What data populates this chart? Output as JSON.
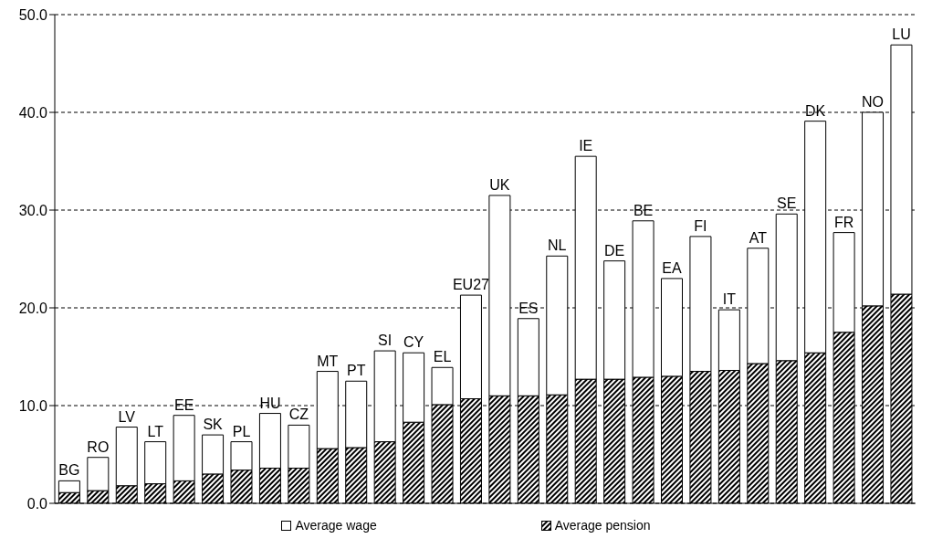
{
  "chart_data": {
    "type": "bar",
    "stacked": true,
    "categories": [
      "BG",
      "RO",
      "LV",
      "LT",
      "EE",
      "SK",
      "PL",
      "HU",
      "CZ",
      "MT",
      "PT",
      "SI",
      "CY",
      "EL",
      "EU27",
      "UK",
      "ES",
      "NL",
      "IE",
      "DE",
      "BE",
      "EA",
      "FI",
      "IT",
      "AT",
      "SE",
      "DK",
      "FR",
      "NO",
      "LU"
    ],
    "series": [
      {
        "name": "Average pension",
        "color": "#000000",
        "values": [
          1.1,
          1.3,
          1.8,
          2.0,
          2.3,
          3.0,
          3.4,
          3.6,
          3.6,
          5.6,
          5.7,
          6.3,
          8.3,
          10.1,
          10.7,
          11.0,
          11.0,
          11.1,
          12.7,
          12.7,
          12.9,
          13.0,
          13.5,
          13.6,
          14.3,
          14.6,
          15.4,
          17.5,
          20.2,
          21.4
        ]
      },
      {
        "name": "Average wage",
        "color": "#ffffff",
        "values": [
          1.2,
          3.4,
          6.0,
          4.3,
          6.7,
          4.0,
          2.9,
          5.6,
          4.4,
          7.9,
          6.8,
          9.3,
          7.1,
          3.8,
          10.6,
          20.5,
          7.9,
          14.2,
          22.8,
          12.1,
          16.0,
          10.0,
          13.8,
          6.2,
          11.8,
          15.0,
          23.7,
          10.2,
          19.8,
          25.5
        ]
      }
    ],
    "ylim": [
      0,
      50
    ],
    "yticks": [
      {
        "value": 0,
        "label": "0.0"
      },
      {
        "value": 10,
        "label": "10.0"
      },
      {
        "value": 20,
        "label": "20.0"
      },
      {
        "value": 30,
        "label": "30.0"
      },
      {
        "value": 40,
        "label": "40.0"
      },
      {
        "value": 50,
        "label": "50.0"
      }
    ],
    "grid": "y",
    "legend": "bottom",
    "tick_labels": "y"
  }
}
